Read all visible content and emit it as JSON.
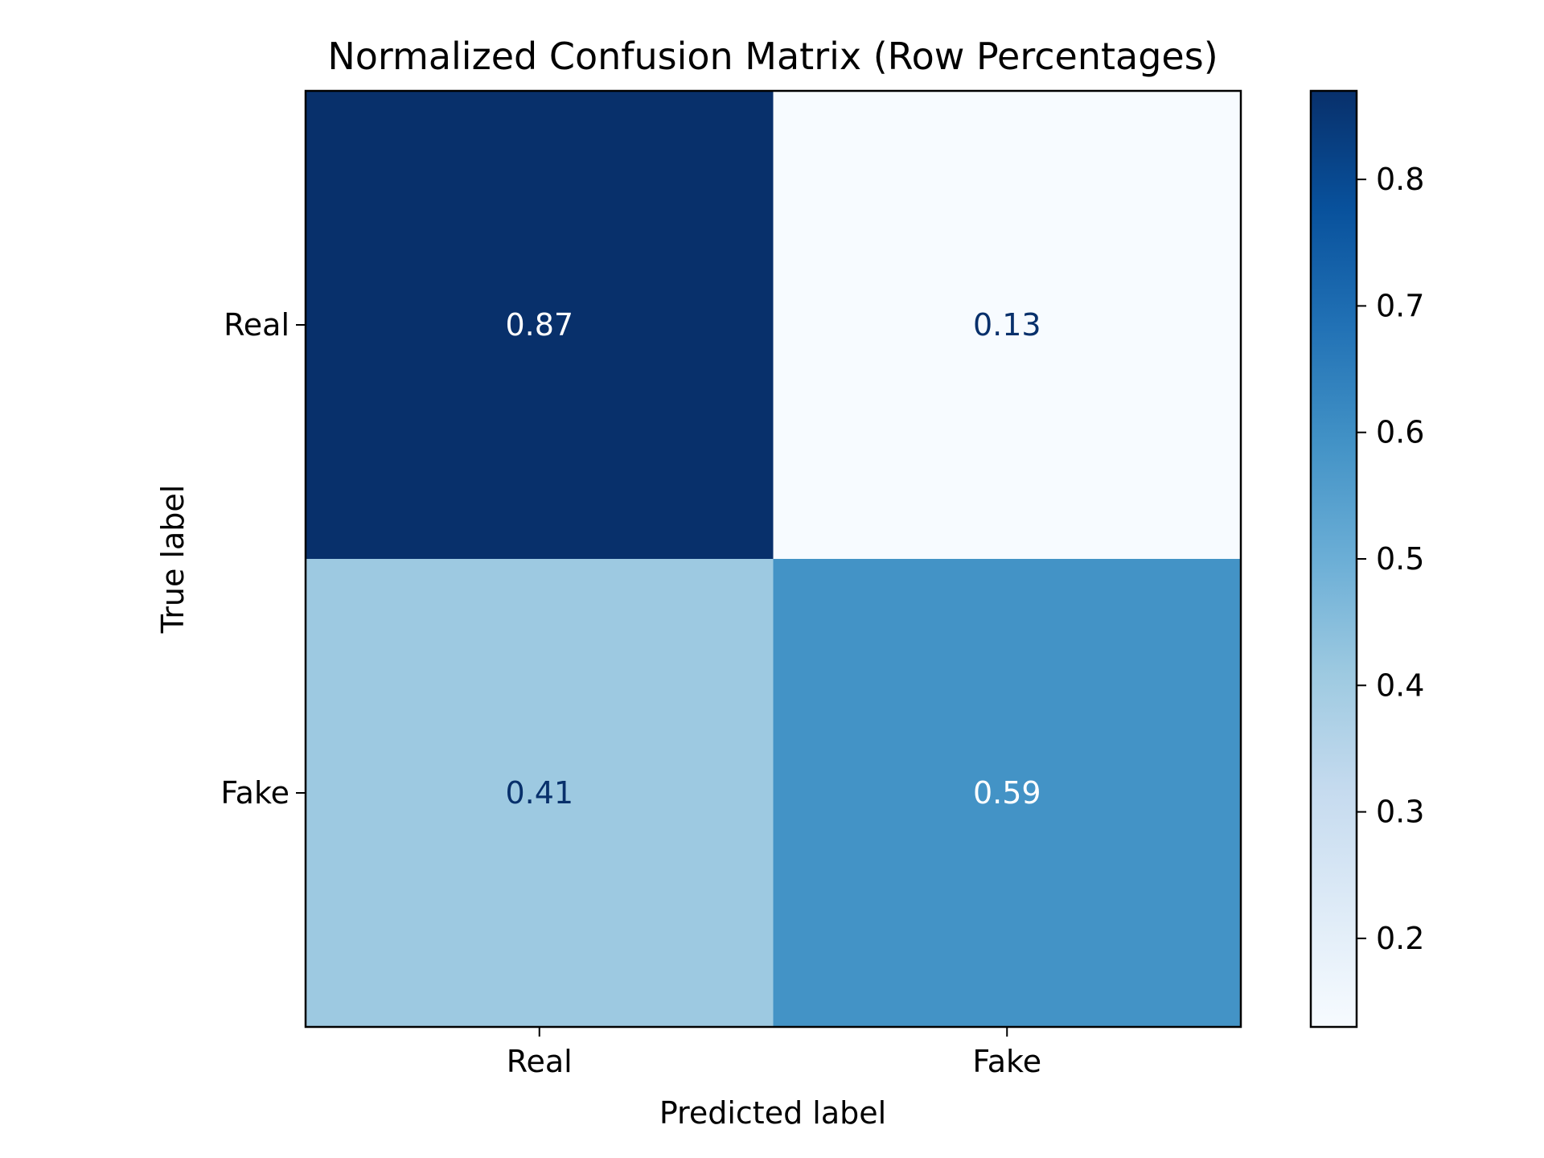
{
  "chart_data": {
    "type": "heatmap",
    "title": "Normalized Confusion Matrix (Row Percentages)",
    "xlabel": "Predicted label",
    "ylabel": "True label",
    "x_categories": [
      "Real",
      "Fake"
    ],
    "y_categories": [
      "Real",
      "Fake"
    ],
    "values": [
      [
        0.87,
        0.13
      ],
      [
        0.41,
        0.59
      ]
    ],
    "value_labels": [
      [
        "0.87",
        "0.13"
      ],
      [
        "0.41",
        "0.59"
      ]
    ],
    "colormap": "Blues",
    "colorbar": {
      "min": 0.13,
      "max": 0.87,
      "ticks": [
        0.2,
        0.3,
        0.4,
        0.5,
        0.6,
        0.7,
        0.8
      ],
      "tick_labels": [
        "0.2",
        "0.3",
        "0.4",
        "0.5",
        "0.6",
        "0.7",
        "0.8"
      ]
    },
    "grid": false
  }
}
